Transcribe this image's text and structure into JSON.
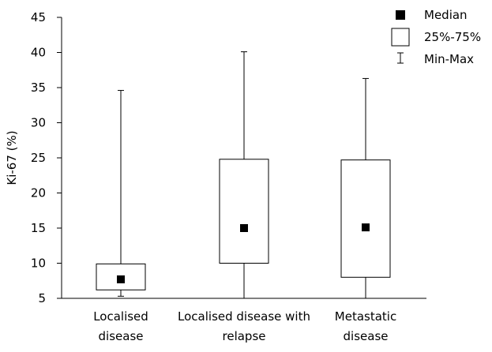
{
  "chart_data": {
    "type": "box",
    "title": "",
    "xlabel": "",
    "ylabel": "Ki-67 (%)",
    "ylim": [
      5,
      45
    ],
    "yticks": [
      5,
      10,
      15,
      20,
      25,
      30,
      35,
      40,
      45
    ],
    "grid": false,
    "legend_position": "top-right",
    "legend": [
      {
        "key": "median",
        "label": "Median"
      },
      {
        "key": "box",
        "label": "25%-75%"
      },
      {
        "key": "whisker",
        "label": "Min-Max"
      }
    ],
    "categories": [
      {
        "label_lines": [
          "Localised",
          "disease"
        ],
        "min": 5.3,
        "q1": 6.2,
        "median": 7.7,
        "q3": 9.9,
        "max": 34.6
      },
      {
        "label_lines": [
          "Localised disease with",
          "relapse"
        ],
        "min": 5.0,
        "q1": 10.0,
        "median": 15.0,
        "q3": 24.8,
        "max": 40.1
      },
      {
        "label_lines": [
          "Metastatic",
          "disease"
        ],
        "min": 5.0,
        "q1": 8.0,
        "median": 15.1,
        "q3": 24.7,
        "max": 36.3
      }
    ]
  }
}
